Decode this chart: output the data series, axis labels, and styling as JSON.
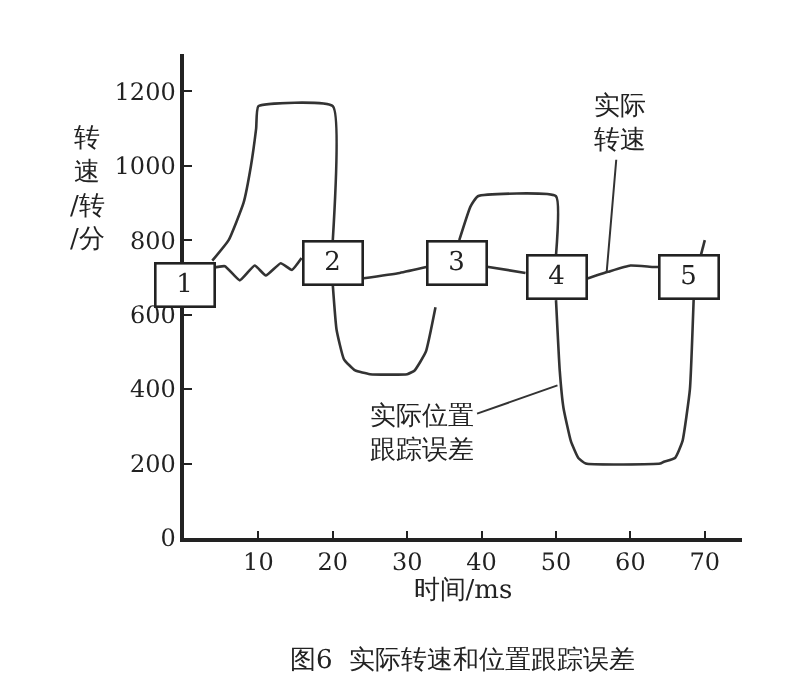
{
  "chart_data": {
    "type": "line",
    "title": "图6  实际转速和位置跟踪误差",
    "xlabel": "时间/ms",
    "ylabel": "转速/转/分",
    "xlim": [
      0,
      75
    ],
    "xticks": [
      10,
      20,
      30,
      40,
      50,
      60,
      70
    ],
    "ylim": [
      0,
      1300
    ],
    "yticks": [
      0,
      200,
      400,
      600,
      800,
      1000,
      1200
    ],
    "grid": false,
    "legend": false,
    "marker": "none",
    "line_style": "solid",
    "series": [
      {
        "name": "实际转速",
        "color": "#333333",
        "x": [
          3.8,
          5.5,
          7.5,
          9.5,
          11,
          13,
          14.5,
          15.8,
          null,
          23.9,
          29,
          32.9,
          null,
          40.3,
          45.9,
          null,
          53.9,
          57,
          60,
          63,
          63.8,
          null,
          69.5,
          70
        ],
        "values": [
          725,
          730,
          692,
          732,
          705,
          738,
          720,
          752,
          null,
          697,
          712,
          729,
          null,
          730,
          712,
          null,
          695,
          715,
          732,
          728,
          728,
          null,
          762,
          800
        ]
      },
      {
        "name": "实际位置跟踪误差",
        "color": "#333333",
        "x": [
          3.8,
          6,
          8,
          9,
          9.7,
          10,
          20,
          20,
          null,
          20,
          20.5,
          21.5,
          23,
          25,
          30,
          31,
          32.5,
          33.8,
          null,
          37,
          38.5,
          39.5,
          50,
          50,
          null,
          50,
          50.5,
          51,
          52,
          53,
          54,
          64,
          64.5,
          66,
          67,
          68,
          68.5
        ],
        "values": [
          745,
          800,
          900,
          1000,
          1100,
          1160,
          1160,
          800,
          null,
          679,
          560,
          480,
          450,
          440,
          440,
          450,
          500,
          620,
          null,
          800,
          890,
          918,
          918,
          759,
          null,
          639,
          450,
          350,
          260,
          215,
          200,
          200,
          205,
          215,
          260,
          400,
          640
        ]
      }
    ],
    "annotations": [
      {
        "text": "1",
        "x": 0,
        "y": 678
      },
      {
        "text": "2",
        "x": 20,
        "y": 740
      },
      {
        "text": "3",
        "x": 36.6,
        "y": 740
      },
      {
        "text": "4",
        "x": 50,
        "y": 700
      },
      {
        "text": "5",
        "x": 68,
        "y": 700
      }
    ]
  }
}
